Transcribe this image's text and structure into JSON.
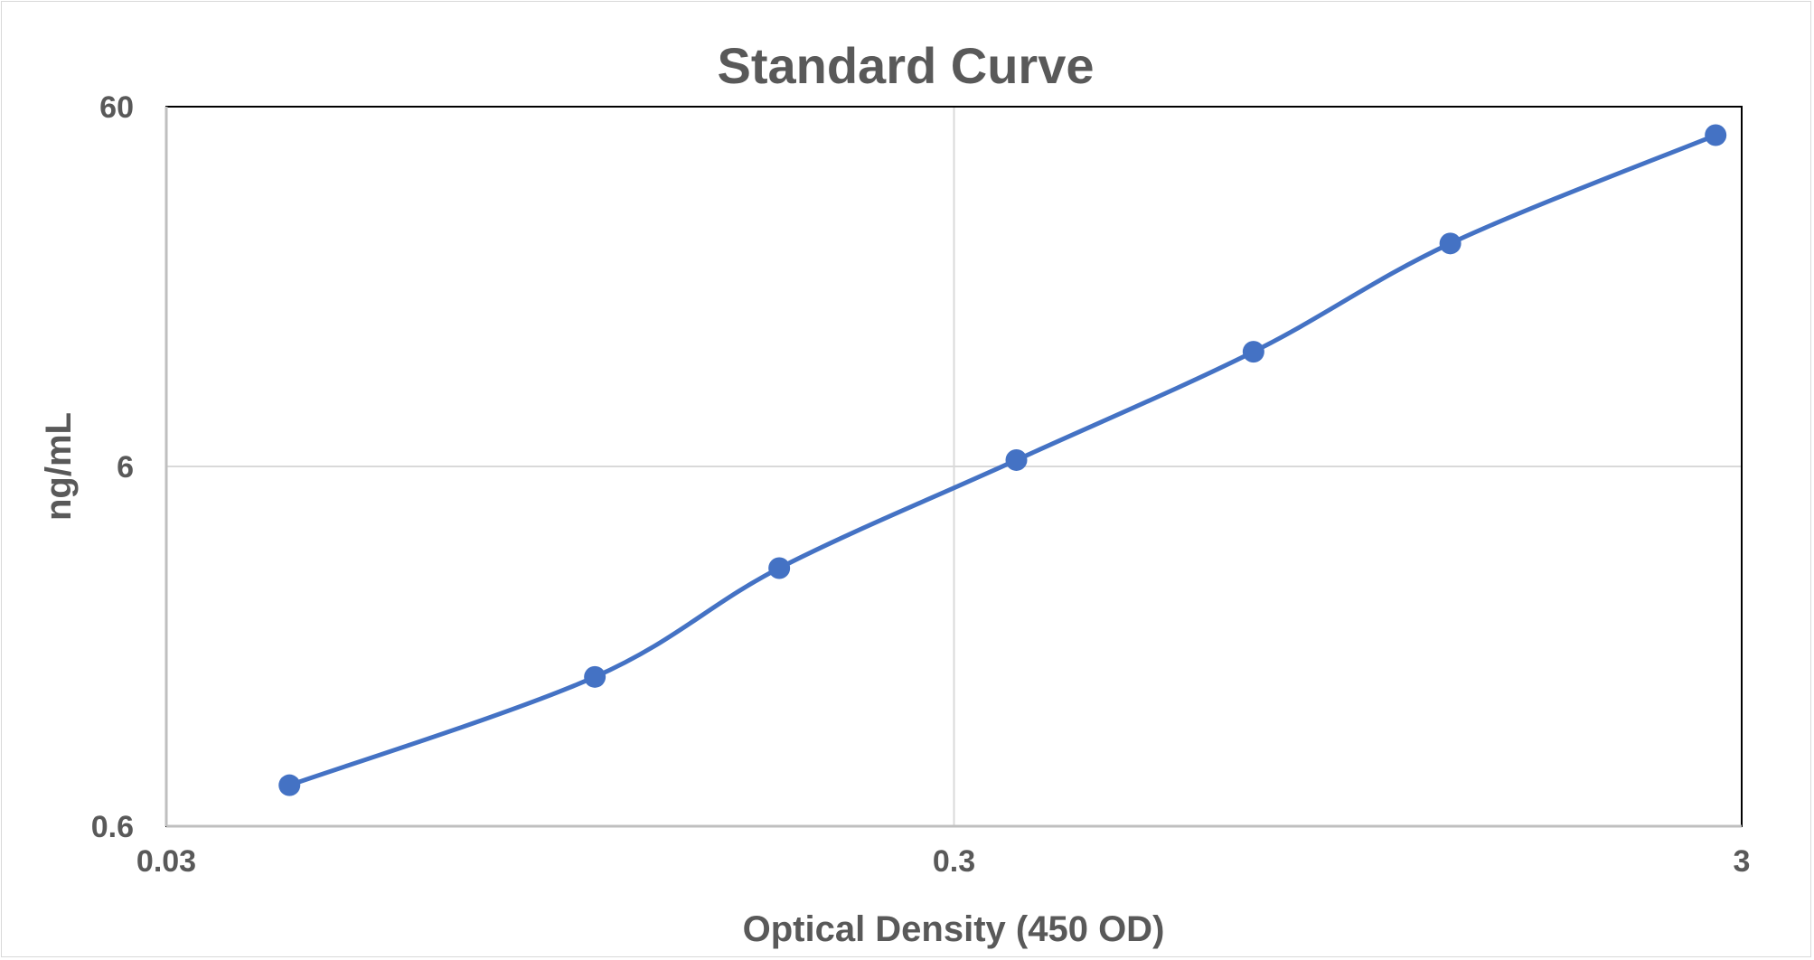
{
  "chart_data": {
    "type": "line",
    "title": "Standard Curve",
    "xlabel": "Optical Density (450 OD)",
    "ylabel": "ng/mL",
    "x_scale": "log",
    "y_scale": "log",
    "xlim": [
      0.03,
      3
    ],
    "ylim": [
      0.6,
      60
    ],
    "x_ticks": [
      "0.03",
      "0.3",
      "3"
    ],
    "y_ticks": [
      "0.6",
      "6",
      "60"
    ],
    "grid": true,
    "smooth": true,
    "series": [
      {
        "x": [
          0.043,
          0.105,
          0.18,
          0.36,
          0.72,
          1.28,
          2.78
        ],
        "y": [
          0.78,
          1.56,
          3.13,
          6.25,
          12.5,
          25,
          50
        ],
        "color": "#4472c4"
      }
    ]
  }
}
